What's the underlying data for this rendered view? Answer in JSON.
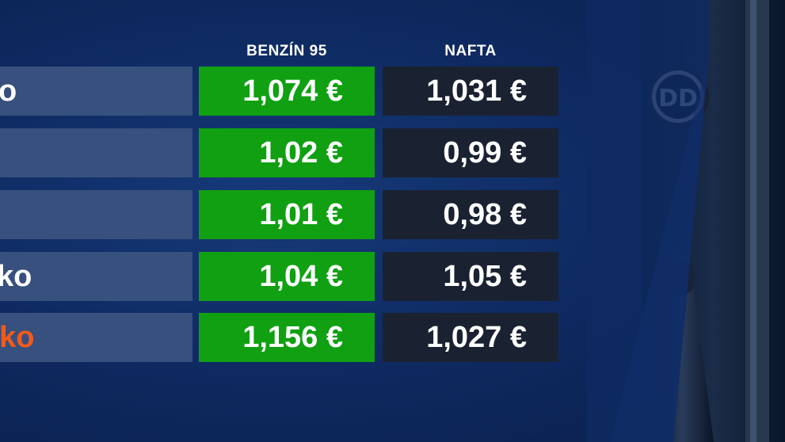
{
  "header": {
    "petrol_label": "BENZÍN 95",
    "diesel_label": "NAFTA"
  },
  "rows": [
    {
      "country": "o",
      "petrol": "1,074 €",
      "diesel": "1,031 €",
      "highlight": false
    },
    {
      "country": "",
      "petrol": "1,02 €",
      "diesel": "0,99 €",
      "highlight": false
    },
    {
      "country": "",
      "petrol": "1,01 €",
      "diesel": "0,98 €",
      "highlight": false
    },
    {
      "country": "ko",
      "petrol": "1,04 €",
      "diesel": "1,05 €",
      "highlight": false
    },
    {
      "country": "sko",
      "petrol": "1,156 €",
      "diesel": "1,027 €",
      "highlight": true
    }
  ],
  "colors": {
    "background": "#0f2b63",
    "country_cell": "#37507d",
    "petrol_cell": "#10a012",
    "diesel_cell": "#1a2232",
    "highlight_text": "#f25a1c",
    "text": "#ffffff"
  },
  "photo": {
    "icon": "fuel-nozzle-icon",
    "logo_text": "DD"
  }
}
